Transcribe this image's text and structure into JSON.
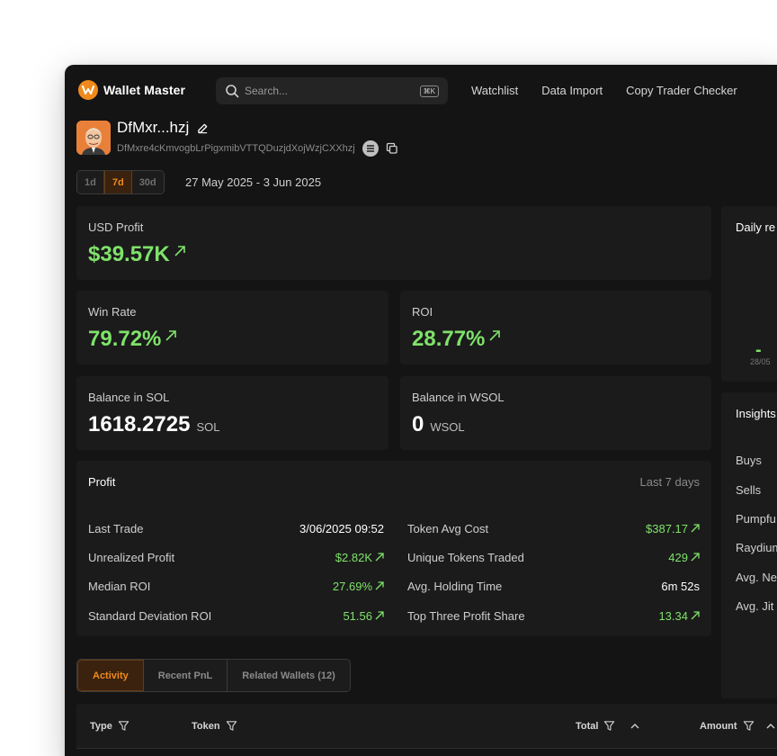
{
  "app": {
    "name": "Wallet Master"
  },
  "search": {
    "placeholder": "Search...",
    "shortcut": "⌘K"
  },
  "nav": [
    "Watchlist",
    "Data Import",
    "Copy Trader Checker"
  ],
  "wallet": {
    "name": "DfMxr...hzj",
    "address": "DfMxre4cKmvogbLrPigxmibVTTQDuzjdXojWzjCXXhzj"
  },
  "range": {
    "options": [
      "1d",
      "7d",
      "30d"
    ],
    "selected": "7d",
    "dates": "27 May 2025 - 3 Jun 2025"
  },
  "stats": {
    "usd_profit": {
      "label": "USD Profit",
      "value": "$39.57K"
    },
    "win_rate": {
      "label": "Win Rate",
      "value": "79.72%"
    },
    "roi": {
      "label": "ROI",
      "value": "28.77%"
    },
    "balance_sol": {
      "label": "Balance in SOL",
      "value": "1618.2725",
      "unit": "SOL"
    },
    "balance_wsol": {
      "label": "Balance in WSOL",
      "value": "0",
      "unit": "WSOL"
    }
  },
  "profit": {
    "title": "Profit",
    "period": "Last 7 days",
    "left": [
      {
        "label": "Last Trade",
        "value": "3/06/2025 09:52"
      },
      {
        "label": "Unrealized Profit",
        "value": "$2.82K"
      },
      {
        "label": "Median ROI",
        "value": "27.69%"
      },
      {
        "label": "Standard Deviation ROI",
        "value": "51.56"
      }
    ],
    "right": [
      {
        "label": "Token Avg Cost",
        "value": "$387.17"
      },
      {
        "label": "Unique Tokens Traded",
        "value": "429"
      },
      {
        "label": "Avg. Holding Time",
        "value": "6m 52s"
      },
      {
        "label": "Top Three Profit Share",
        "value": "13.34"
      }
    ]
  },
  "daily": {
    "title": "Daily re",
    "date_label": "28/05",
    "bar_value": "-"
  },
  "insights": {
    "title": "Insights",
    "items": [
      "Buys",
      "Sells",
      "Pumpfu",
      "Raydium",
      "Avg. Ne",
      "Avg. Jit"
    ]
  },
  "tabs": [
    "Activity",
    "Recent PnL",
    "Related Wallets (12)"
  ],
  "table": {
    "columns": [
      "Type",
      "Token",
      "Total",
      "Amount"
    ]
  },
  "colors": {
    "accent": "#f08a1c",
    "positive": "#7fe26a",
    "background": "#141414",
    "card": "#1b1b1b"
  }
}
